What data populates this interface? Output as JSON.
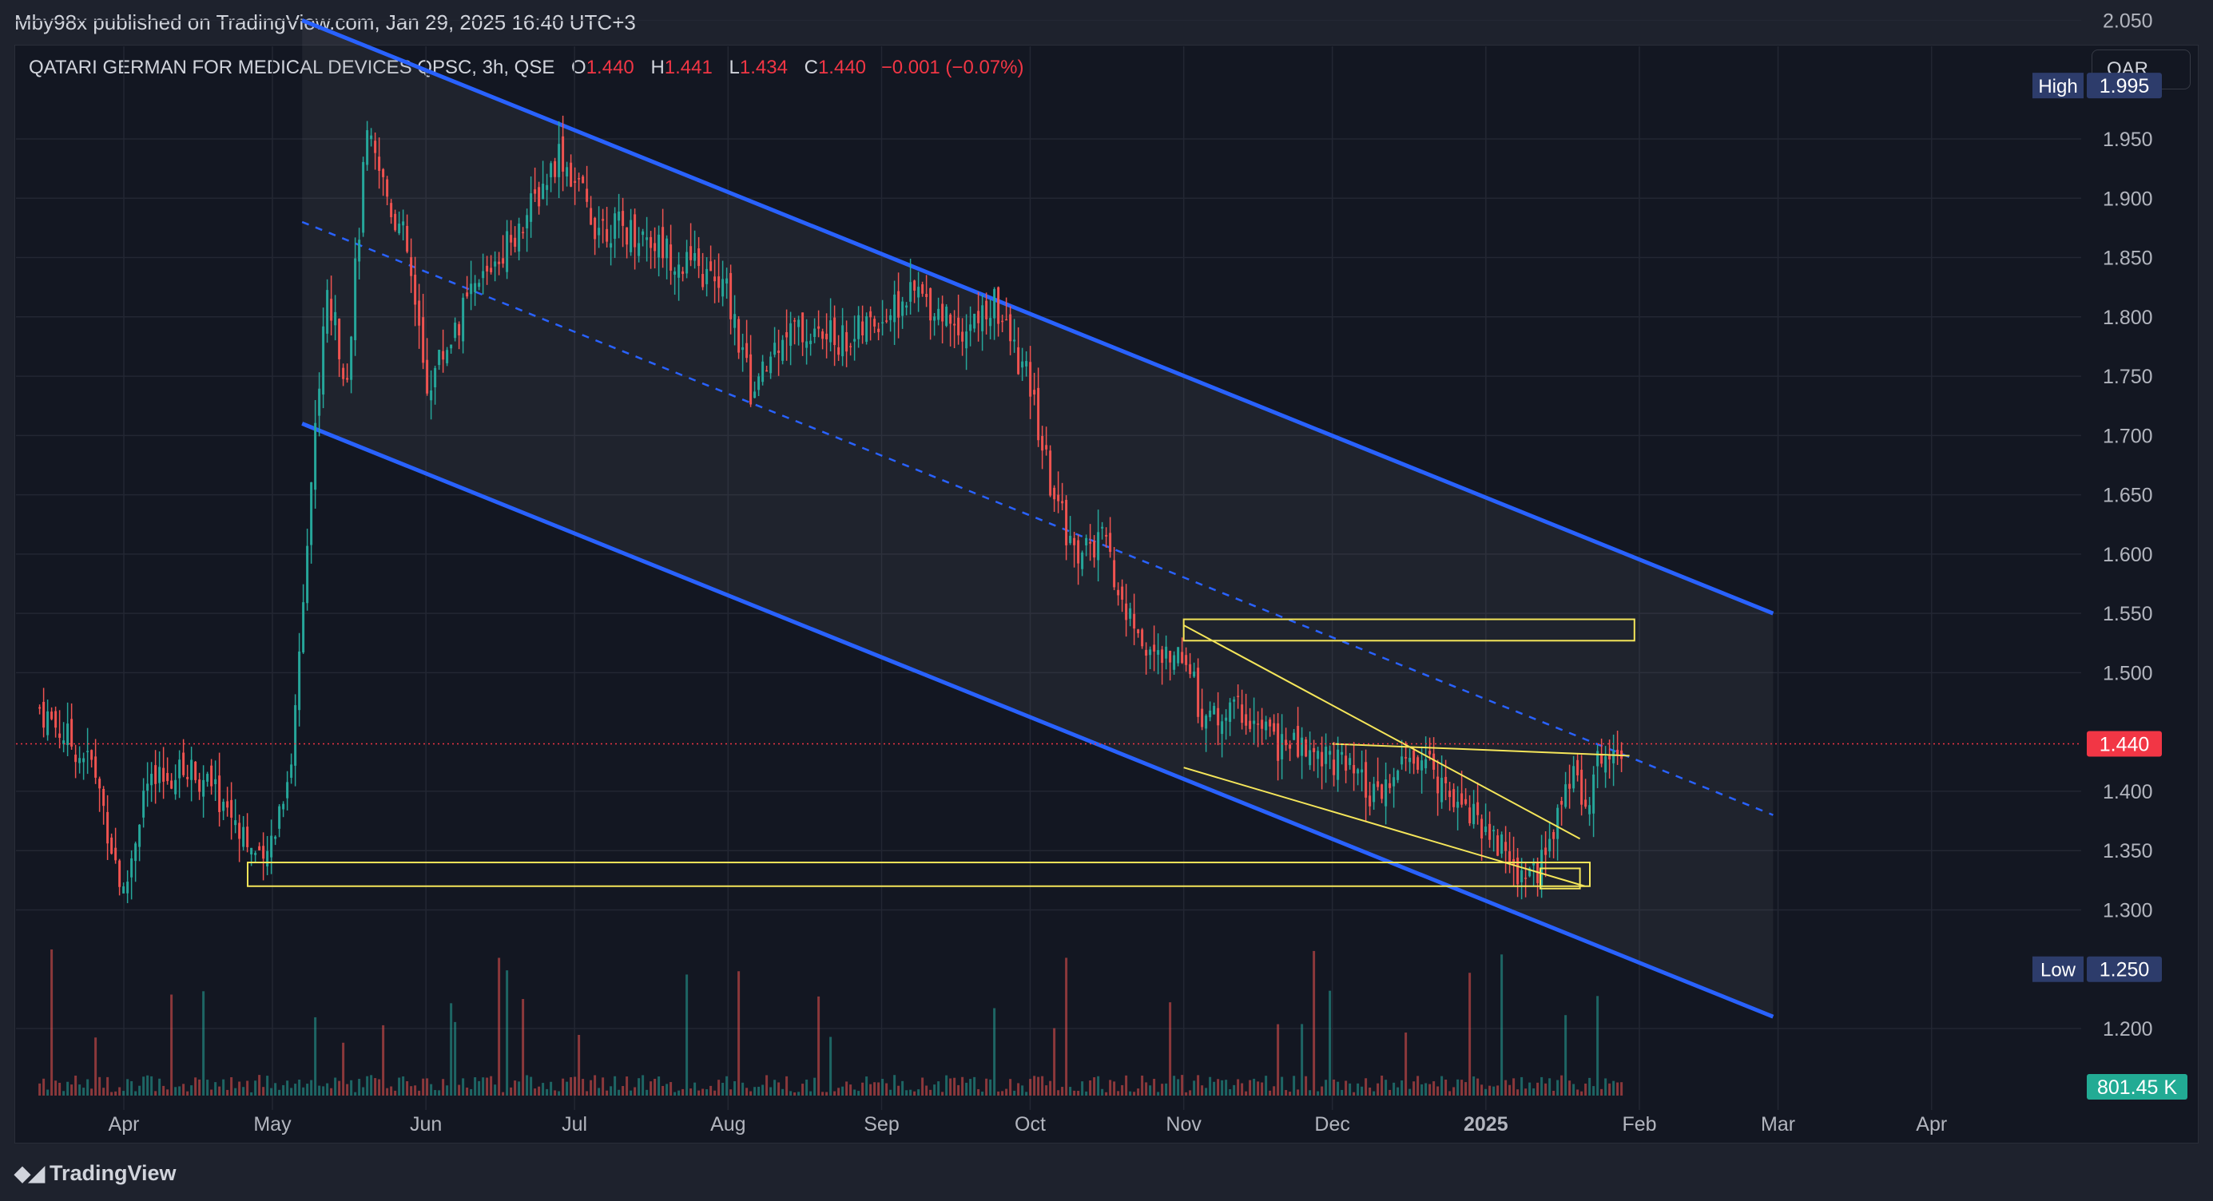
{
  "header": {
    "published": "Mby98x published on TradingView.com, Jan 29, 2025 16:40 UTC+3"
  },
  "legend": {
    "symbol": "QATARI GERMAN FOR MEDICAL DEVICES QPSC, 3h, QSE",
    "o_label": "O",
    "o_value": "1.440",
    "h_label": "H",
    "h_value": "1.441",
    "l_label": "L",
    "l_value": "1.434",
    "c_label": "C",
    "c_value": "1.440",
    "change": "−0.001 (−0.07%)"
  },
  "currency": "QAR",
  "footer": {
    "brand": "TradingView"
  },
  "colors": {
    "up": "#26a69a",
    "down": "#ef5350",
    "channel": "#2962ff",
    "annotation": "#f5e65a",
    "last_price": "#f23645",
    "badge": "#2d3c6b"
  },
  "chart_data": {
    "type": "candlestick",
    "symbol": "QATARI GERMAN FOR MEDICAL DEVICES QPSC",
    "interval": "3h",
    "exchange": "QSE",
    "currency": "QAR",
    "y_ticks": [
      "2.050",
      "1.950",
      "1.900",
      "1.850",
      "1.800",
      "1.750",
      "1.700",
      "1.650",
      "1.600",
      "1.550",
      "1.500",
      "1.400",
      "1.350",
      "1.300",
      "1.200"
    ],
    "x_ticks": [
      "Apr",
      "May",
      "Jun",
      "Jul",
      "Aug",
      "Sep",
      "Oct",
      "Nov",
      "Dec",
      "2025",
      "Feb",
      "Mar",
      "Apr"
    ],
    "ylim": [
      1.15,
      2.09
    ],
    "labels": {
      "high": {
        "label": "High",
        "value": "1.995"
      },
      "low": {
        "label": "Low",
        "value": "1.250"
      },
      "last": {
        "value": "1.440"
      },
      "volume": {
        "value": "801.45 K"
      }
    },
    "approx_close_path": [
      [
        "2024-03-15",
        1.47
      ],
      [
        "2024-03-26",
        1.42
      ],
      [
        "2024-04-01",
        1.31
      ],
      [
        "2024-04-05",
        1.4
      ],
      [
        "2024-04-15",
        1.42
      ],
      [
        "2024-04-25",
        1.37
      ],
      [
        "2024-04-29",
        1.33
      ],
      [
        "2024-05-05",
        1.43
      ],
      [
        "2024-05-08",
        1.62
      ],
      [
        "2024-05-12",
        1.82
      ],
      [
        "2024-05-16",
        1.75
      ],
      [
        "2024-05-20",
        1.95
      ],
      [
        "2024-05-28",
        1.86
      ],
      [
        "2024-06-01",
        1.74
      ],
      [
        "2024-06-08",
        1.8
      ],
      [
        "2024-06-15",
        1.85
      ],
      [
        "2024-06-22",
        1.89
      ],
      [
        "2024-06-28",
        1.94
      ],
      [
        "2024-07-05",
        1.88
      ],
      [
        "2024-07-15",
        1.87
      ],
      [
        "2024-07-25",
        1.84
      ],
      [
        "2024-08-01",
        1.82
      ],
      [
        "2024-08-06",
        1.73
      ],
      [
        "2024-08-12",
        1.79
      ],
      [
        "2024-08-25",
        1.78
      ],
      [
        "2024-09-01",
        1.8
      ],
      [
        "2024-09-08",
        1.82
      ],
      [
        "2024-09-18",
        1.79
      ],
      [
        "2024-09-24",
        1.81
      ],
      [
        "2024-10-01",
        1.74
      ],
      [
        "2024-10-05",
        1.66
      ],
      [
        "2024-10-10",
        1.6
      ],
      [
        "2024-10-16",
        1.61
      ],
      [
        "2024-10-20",
        1.55
      ],
      [
        "2024-10-27",
        1.51
      ],
      [
        "2024-11-01",
        1.52
      ],
      [
        "2024-11-05",
        1.46
      ],
      [
        "2024-11-12",
        1.47
      ],
      [
        "2024-11-20",
        1.44
      ],
      [
        "2024-12-01",
        1.43
      ],
      [
        "2024-12-10",
        1.39
      ],
      [
        "2024-12-17",
        1.43
      ],
      [
        "2024-12-23",
        1.41
      ],
      [
        "2025-01-01",
        1.37
      ],
      [
        "2025-01-08",
        1.33
      ],
      [
        "2025-01-13",
        1.34
      ],
      [
        "2025-01-17",
        1.41
      ],
      [
        "2025-01-22",
        1.4
      ],
      [
        "2025-01-25",
        1.44
      ],
      [
        "2025-01-29",
        1.44
      ]
    ],
    "high": 1.995,
    "low": 1.25,
    "last": 1.44
  }
}
